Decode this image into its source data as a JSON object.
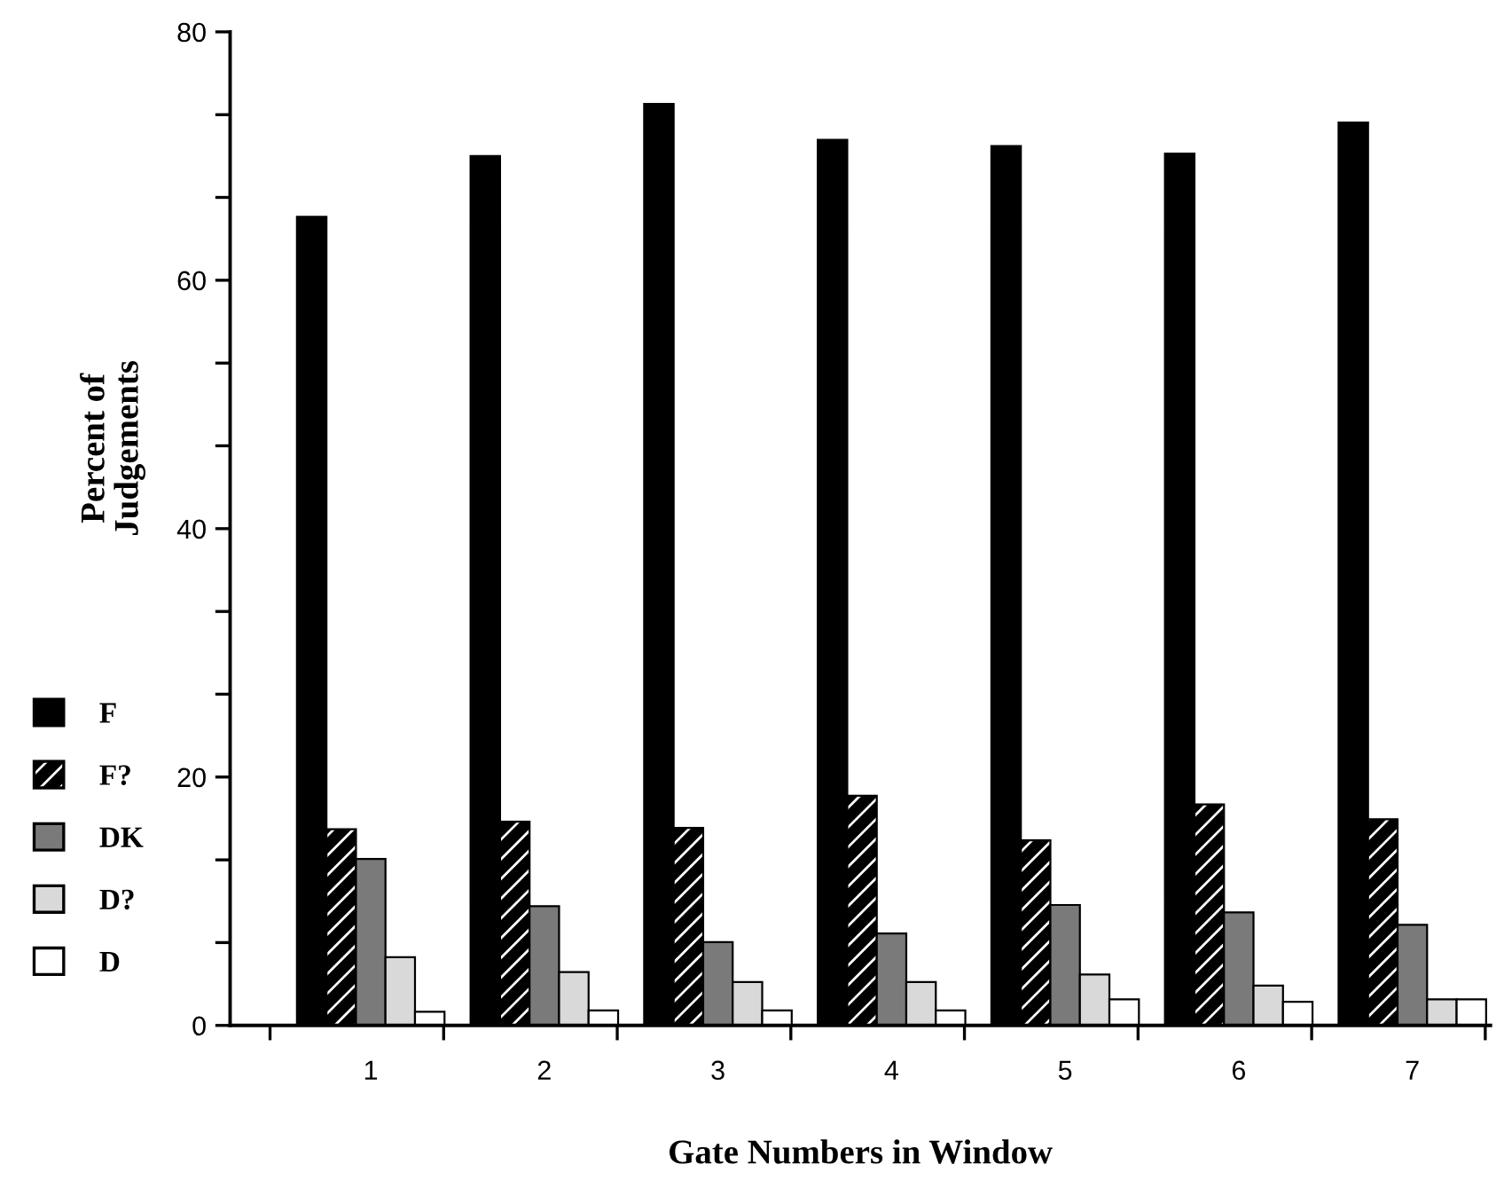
{
  "chart_data": {
    "type": "bar",
    "xlabel": "Gate Numbers in Window",
    "ylabel": "Percent of\nJudgements",
    "categories": [
      "1",
      "2",
      "3",
      "4",
      "5",
      "6",
      "7"
    ],
    "series": [
      {
        "name": "F",
        "color": "#000000",
        "values": [
          65.1,
          70.0,
          74.2,
          71.3,
          70.8,
          70.2,
          72.7
        ]
      },
      {
        "name": "F?",
        "color": "#000000",
        "values": [
          15.8,
          16.4,
          15.9,
          18.5,
          14.9,
          17.8,
          16.6
        ]
      },
      {
        "name": "DK",
        "color": "#7a7a7a",
        "values": [
          13.4,
          9.6,
          6.7,
          7.4,
          9.7,
          9.1,
          8.1
        ]
      },
      {
        "name": "D?",
        "color": "#d9d9d9",
        "values": [
          5.5,
          4.3,
          3.5,
          3.5,
          4.1,
          3.2,
          2.1
        ]
      },
      {
        "name": "D",
        "color": "#ffffff",
        "values": [
          1.1,
          1.2,
          1.2,
          1.2,
          2.1,
          1.9,
          2.1
        ]
      }
    ],
    "ylim": [
      0,
      80
    ],
    "yticks": [
      0,
      {
        "value": 6.67,
        "label": null
      },
      {
        "value": 13.33,
        "label": null
      },
      20,
      {
        "value": 26.67,
        "label": null
      },
      {
        "value": 33.33,
        "label": null
      },
      40,
      {
        "value": 46.67,
        "label": null
      },
      {
        "value": 53.33,
        "label": null
      },
      60,
      {
        "value": 66.67,
        "label": null
      },
      {
        "value": 73.33,
        "label": null
      },
      80
    ],
    "grid": false,
    "legend": "left"
  }
}
